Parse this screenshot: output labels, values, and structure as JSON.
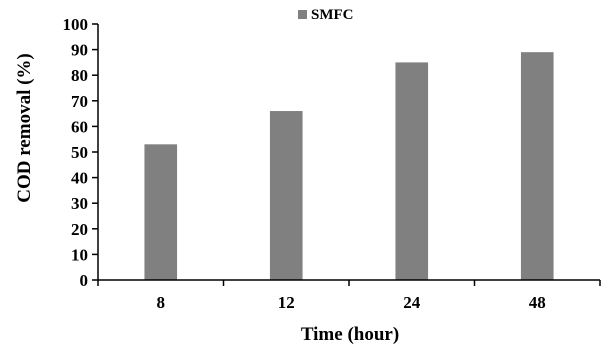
{
  "chart_data": {
    "type": "bar",
    "categories": [
      "8",
      "12",
      "24",
      "48"
    ],
    "series": [
      {
        "name": "SMFC",
        "values": [
          53,
          66,
          85,
          89
        ],
        "color": "#808080"
      }
    ],
    "xlabel": "Time (hour)",
    "ylabel": "COD removal (%)",
    "ylim": [
      0,
      100
    ],
    "yticks": [
      "0",
      "10",
      "20",
      "30",
      "40",
      "50",
      "60",
      "70",
      "80",
      "90",
      "100"
    ],
    "grid": false,
    "legend_position": "top-center"
  }
}
